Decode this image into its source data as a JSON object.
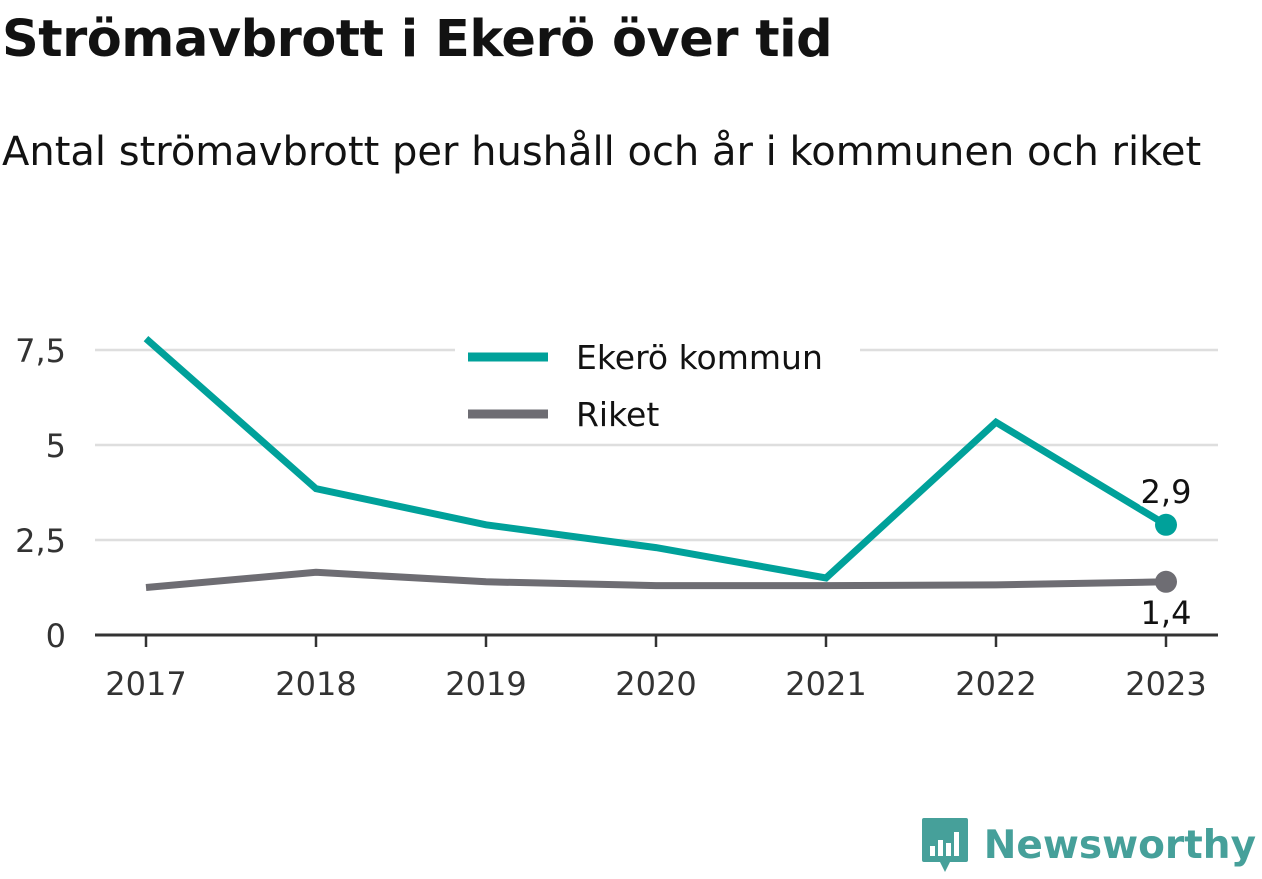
{
  "title": "Strömavbrott i Ekerö över tid",
  "subtitle": "Antal strömavbrott per hushåll och år i kommunen och riket",
  "brand": {
    "name": "Newsworthy",
    "icon": "newsworthy-logo-icon",
    "color": "#46a09a"
  },
  "chart_data": {
    "type": "line",
    "categories": [
      "2017",
      "2018",
      "2019",
      "2020",
      "2021",
      "2022",
      "2023"
    ],
    "x": [
      2017,
      2018,
      2019,
      2020,
      2021,
      2022,
      2023
    ],
    "ylim": [
      0,
      8
    ],
    "yticks": [
      0,
      2.5,
      5,
      7.5
    ],
    "ytick_labels": [
      "0",
      "2,5",
      "5",
      "7,5"
    ],
    "grid": true,
    "legend_position": "top-center",
    "title": "",
    "xlabel": "",
    "ylabel": "",
    "series": [
      {
        "name": "Ekerö kommun",
        "color": "#00a19a",
        "values": [
          7.8,
          3.85,
          2.9,
          2.3,
          1.5,
          5.6,
          2.9
        ],
        "end_label": "2,9"
      },
      {
        "name": "Riket",
        "color": "#6e6d73",
        "values": [
          1.25,
          1.65,
          1.4,
          1.3,
          1.3,
          1.32,
          1.4
        ],
        "end_label": "1,4"
      }
    ]
  }
}
